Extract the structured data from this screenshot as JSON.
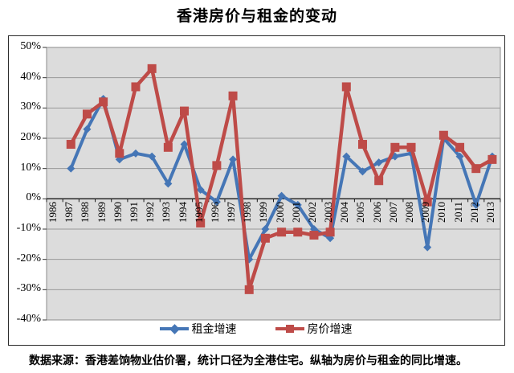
{
  "title": "香港房价与租金的变动",
  "caption": "数据来源：香港差饷物业估价署，统计口径为全港住宅。纵轴为房价与租金的同比增速。",
  "legend": {
    "rent_label": "租金增速",
    "price_label": "房价增速"
  },
  "colors": {
    "rent_series": "#4576B6",
    "price_series": "#BE4B48",
    "plot_fill": "#DCDCDC",
    "gridline": "#999999",
    "axis_line": "#333333"
  },
  "chart_data": {
    "type": "line",
    "title": "香港房价与租金的变动",
    "categories": [
      "1986",
      "1987",
      "1988",
      "1989",
      "1990",
      "1991",
      "1992",
      "1993",
      "1994",
      "1995",
      "1996",
      "1997",
      "1998",
      "1999",
      "2000",
      "2001",
      "2002",
      "2003",
      "2004",
      "2005",
      "2006",
      "2007",
      "2008",
      "2009",
      "2010",
      "2011",
      "2012",
      "2013"
    ],
    "series": [
      {
        "name": "租金增速",
        "marker": "diamond",
        "color": "#4576B6",
        "values": [
          null,
          10,
          23,
          33,
          13,
          15,
          14,
          5,
          18,
          3,
          -1,
          13,
          -20,
          -10,
          1,
          -2,
          -10,
          -13,
          14,
          9,
          12,
          14,
          15,
          -16,
          20,
          14,
          -2,
          14
        ]
      },
      {
        "name": "房价增速",
        "marker": "square",
        "color": "#BE4B48",
        "values": [
          null,
          18,
          28,
          32,
          15,
          37,
          43,
          17,
          29,
          -8,
          11,
          34,
          -30,
          -13,
          -11,
          -11,
          -12,
          -11,
          37,
          18,
          6,
          17,
          17,
          -1,
          21,
          17,
          10,
          13
        ]
      }
    ],
    "ylim": [
      -40,
      50
    ],
    "y_tick_step": 10,
    "y_ticks": [
      "50%",
      "40%",
      "30%",
      "20%",
      "10%",
      "0%",
      "-10%",
      "-20%",
      "-30%",
      "-40%"
    ],
    "grid": true,
    "legend_position": "bottom",
    "xlabel": "",
    "ylabel": ""
  }
}
